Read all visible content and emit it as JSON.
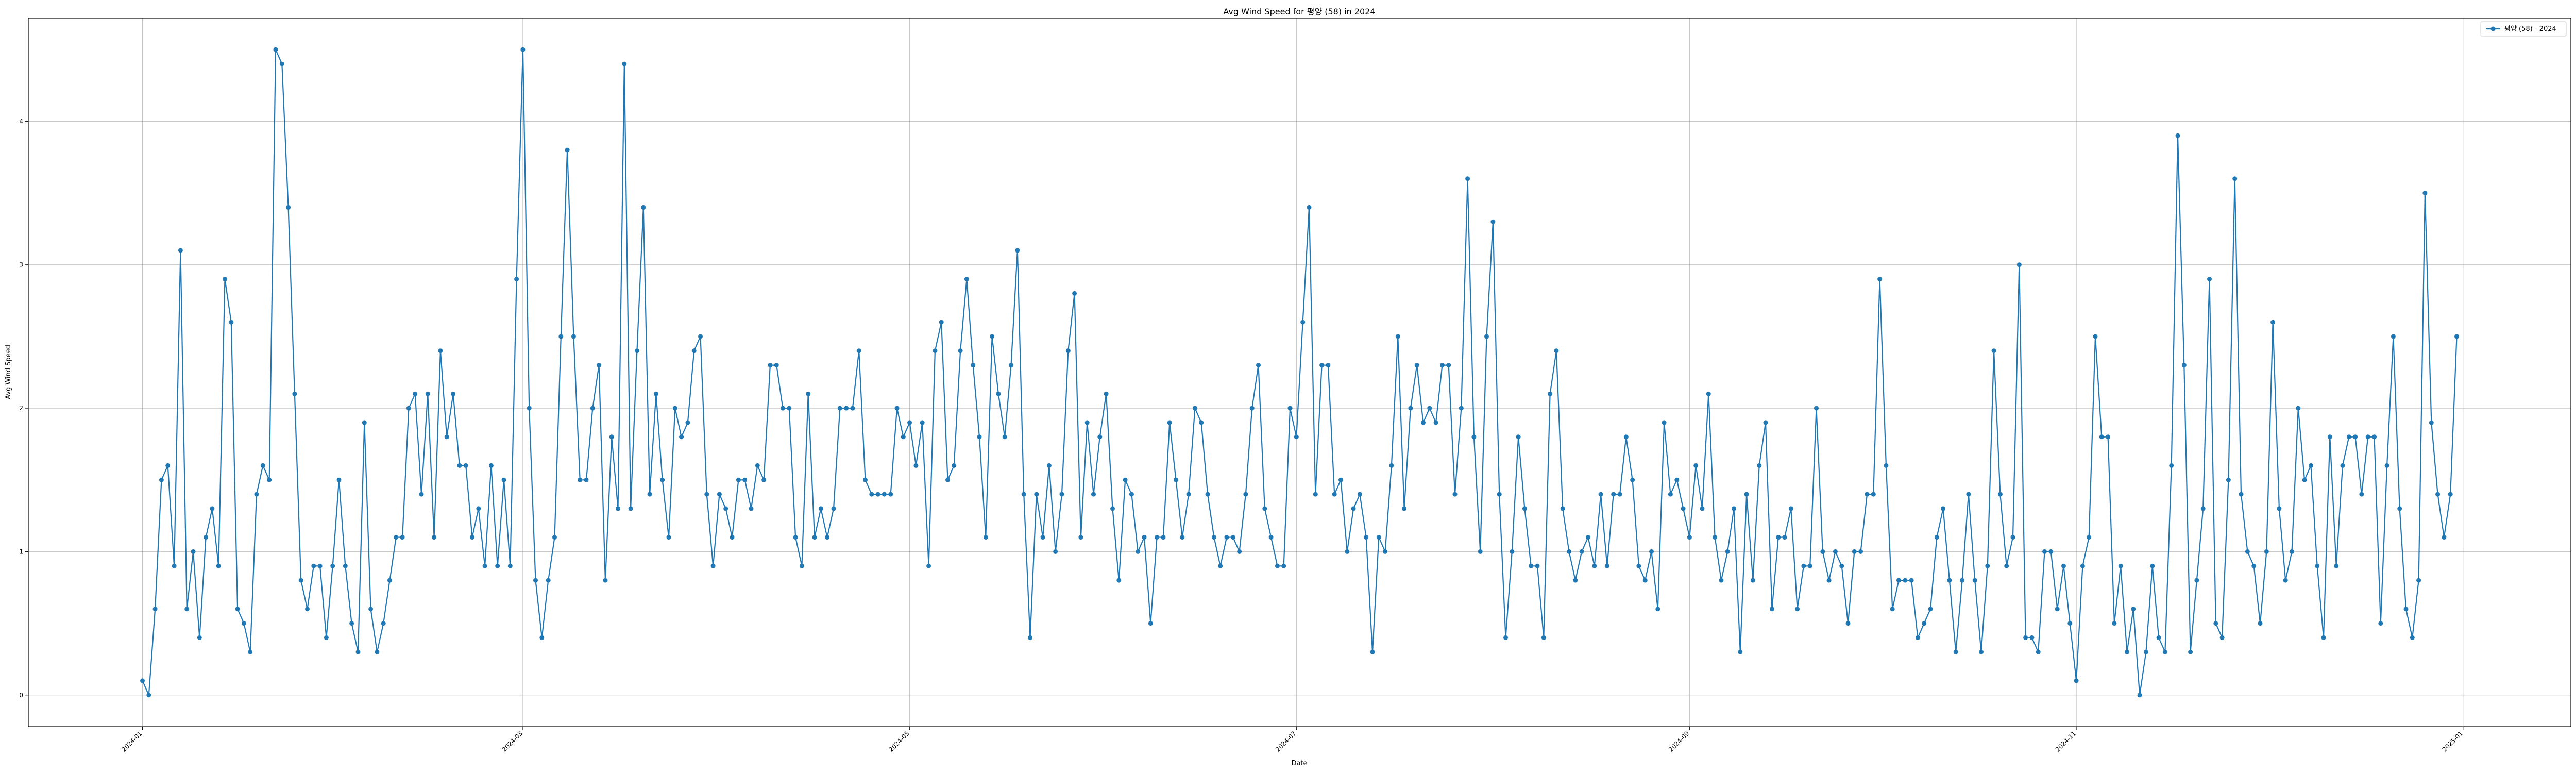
{
  "chart_data": {
    "type": "line",
    "title": "Avg Wind Speed for 평양 (58) in 2024",
    "xlabel": "Date",
    "ylabel": "Avg Wind Speed",
    "x_start": "2024-01-01",
    "x_end": "2024-12-31",
    "xlim": [
      "2023-12-14",
      "2025-01-18"
    ],
    "ylim": [
      -0.22,
      4.72
    ],
    "x_ticks": [
      "2024-01",
      "2024-03",
      "2024-05",
      "2024-07",
      "2024-09",
      "2024-11",
      "2025-01"
    ],
    "y_ticks": [
      0,
      1,
      2,
      3,
      4
    ],
    "grid": true,
    "legend_position": "top-right",
    "colors": {
      "series": "#1f77b4",
      "grid": "#b0b0b0",
      "frame": "#000000"
    },
    "series": [
      {
        "name": "평양 (58) - 2024",
        "values": [
          0.1,
          0.0,
          0.6,
          1.5,
          1.6,
          0.9,
          3.1,
          0.6,
          1.0,
          0.4,
          1.1,
          1.3,
          0.9,
          2.9,
          2.6,
          0.6,
          0.5,
          0.3,
          1.4,
          1.6,
          1.5,
          4.5,
          4.4,
          3.4,
          2.1,
          0.8,
          0.6,
          0.9,
          0.9,
          0.4,
          0.9,
          1.5,
          0.9,
          0.5,
          0.3,
          1.9,
          0.6,
          0.3,
          0.5,
          0.8,
          1.1,
          1.1,
          2.0,
          2.1,
          1.4,
          2.1,
          1.1,
          2.4,
          1.8,
          2.1,
          1.6,
          1.6,
          1.1,
          1.3,
          0.9,
          1.6,
          0.9,
          1.5,
          0.9,
          2.9,
          4.5,
          2.0,
          0.8,
          0.4,
          0.8,
          1.1,
          2.5,
          3.8,
          2.5,
          1.5,
          1.5,
          2.0,
          2.3,
          0.8,
          1.8,
          1.3,
          4.4,
          1.3,
          2.4,
          3.4,
          1.4,
          2.1,
          1.5,
          1.1,
          2.0,
          1.8,
          1.9,
          2.4,
          2.5,
          1.4,
          0.9,
          1.4,
          1.3,
          1.1,
          1.5,
          1.5,
          1.3,
          1.6,
          1.5,
          2.3,
          2.3,
          2.0,
          2.0,
          1.1,
          0.9,
          2.1,
          1.1,
          1.3,
          1.1,
          1.3,
          2.0,
          2.0,
          2.0,
          2.4,
          1.5,
          1.4,
          1.4,
          1.4,
          1.4,
          2.0,
          1.8,
          1.9,
          1.6,
          1.9,
          0.9,
          2.4,
          2.6,
          1.5,
          1.6,
          2.4,
          2.9,
          2.3,
          1.8,
          1.1,
          2.5,
          2.1,
          1.8,
          2.3,
          3.1,
          1.4,
          0.4,
          1.4,
          1.1,
          1.6,
          1.0,
          1.4,
          2.4,
          2.8,
          1.1,
          1.9,
          1.4,
          1.8,
          2.1,
          1.3,
          0.8,
          1.5,
          1.4,
          1.0,
          1.1,
          0.5,
          1.1,
          1.1,
          1.9,
          1.5,
          1.1,
          1.4,
          2.0,
          1.9,
          1.4,
          1.1,
          0.9,
          1.1,
          1.1,
          1.0,
          1.4,
          2.0,
          2.3,
          1.3,
          1.1,
          0.9,
          0.9,
          2.0,
          1.8,
          2.6,
          3.4,
          1.4,
          2.3,
          2.3,
          1.4,
          1.5,
          1.0,
          1.3,
          1.4,
          1.1,
          0.3,
          1.1,
          1.0,
          1.6,
          2.5,
          1.3,
          2.0,
          2.3,
          1.9,
          2.0,
          1.9,
          2.3,
          2.3,
          1.4,
          2.0,
          3.6,
          1.8,
          1.0,
          2.5,
          3.3,
          1.4,
          0.4,
          1.0,
          1.8,
          1.3,
          0.9,
          0.9,
          0.4,
          2.1,
          2.4,
          1.3,
          1.0,
          0.8,
          1.0,
          1.1,
          0.9,
          1.4,
          0.9,
          1.4,
          1.4,
          1.8,
          1.5,
          0.9,
          0.8,
          1.0,
          0.6,
          1.9,
          1.4,
          1.5,
          1.3,
          1.1,
          1.6,
          1.3,
          2.1,
          1.1,
          0.8,
          1.0,
          1.3,
          0.3,
          1.4,
          0.8,
          1.6,
          1.9,
          0.6,
          1.1,
          1.1,
          1.3,
          0.6,
          0.9,
          0.9,
          2.0,
          1.0,
          0.8,
          1.0,
          0.9,
          0.5,
          1.0,
          1.0,
          1.4,
          1.4,
          2.9,
          1.6,
          0.6,
          0.8,
          0.8,
          0.8,
          0.4,
          0.5,
          0.6,
          1.1,
          1.3,
          0.8,
          0.3,
          0.8,
          1.4,
          0.8,
          0.3,
          0.9,
          2.4,
          1.4,
          0.9,
          1.1,
          3.0,
          0.4,
          0.4,
          0.3,
          1.0,
          1.0,
          0.6,
          0.9,
          0.5,
          0.1,
          0.9,
          1.1,
          2.5,
          1.8,
          1.8,
          0.5,
          0.9,
          0.3,
          0.6,
          0.0,
          0.3,
          0.9,
          0.4,
          0.3,
          1.6,
          3.9,
          2.3,
          0.3,
          0.8,
          1.3,
          2.9,
          0.5,
          0.4,
          1.5,
          3.6,
          1.4,
          1.0,
          0.9,
          0.5,
          1.0,
          2.6,
          1.3,
          0.8,
          1.0,
          2.0,
          1.5,
          1.6,
          0.9,
          0.4,
          1.8,
          0.9,
          1.6,
          1.8,
          1.8,
          1.4,
          1.8,
          1.8,
          0.5,
          1.6,
          2.5,
          1.3,
          0.6,
          0.4,
          0.8,
          3.5,
          1.9,
          1.4,
          1.1,
          1.4,
          2.5
        ]
      }
    ]
  }
}
